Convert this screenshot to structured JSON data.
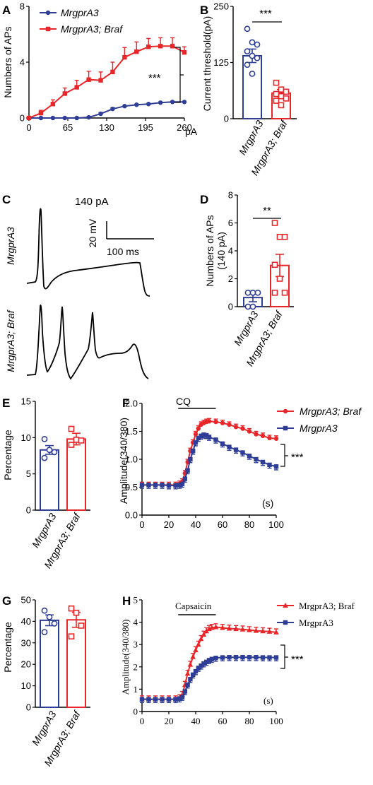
{
  "colors": {
    "blue": "#2e3d95",
    "red": "#e8262a"
  },
  "panels": {
    "A": "A",
    "B": "B",
    "C": "C",
    "D": "D",
    "E": "E",
    "F": "F",
    "G": "G",
    "H": "H"
  },
  "stars": {
    "three": "***",
    "two": "**"
  },
  "chart_data": [
    {
      "id": "A",
      "type": "line",
      "title": "",
      "xlabel": "",
      "x_unit": "pA",
      "ylabel": "Numbers of APs",
      "xlim": [
        0,
        260
      ],
      "ylim": [
        0,
        8
      ],
      "xticks": [
        "0",
        "65",
        "130",
        "195",
        "260"
      ],
      "yticks": [
        "0",
        "4",
        "8"
      ],
      "x": [
        0,
        20,
        40,
        60,
        80,
        100,
        120,
        140,
        160,
        180,
        200,
        220,
        240,
        260
      ],
      "series": [
        {
          "name": "MrgprA3",
          "color": "blue",
          "values": [
            0,
            0,
            0,
            0,
            0,
            0.05,
            0.3,
            0.65,
            0.85,
            0.95,
            1.0,
            1.1,
            1.15,
            1.15
          ],
          "err": [
            0,
            0,
            0,
            0,
            0,
            0.05,
            0.1,
            0.1,
            0.05,
            0.05,
            0.05,
            0.05,
            0.05,
            0.05
          ]
        },
        {
          "name": "MrgprA3; Braf",
          "color": "red",
          "values": [
            0,
            0.35,
            1.0,
            1.75,
            2.2,
            2.75,
            2.7,
            3.3,
            4.35,
            4.75,
            5.1,
            5.15,
            5.15,
            4.7
          ],
          "err": [
            0,
            0.2,
            0.3,
            0.4,
            0.5,
            0.6,
            0.6,
            0.7,
            0.7,
            0.7,
            0.6,
            0.6,
            0.6,
            0.4
          ]
        }
      ],
      "annotation": "***"
    },
    {
      "id": "B",
      "type": "bar",
      "ylabel": "Current threshold(pA)",
      "ylim": [
        0,
        250
      ],
      "yticks": [
        "0",
        "125",
        "250"
      ],
      "categories": [
        "MrgprA3",
        "MrgprA3; Braf"
      ],
      "values": [
        140,
        57
      ],
      "err": [
        15,
        8
      ],
      "points": [
        [
          200,
          170,
          165,
          150,
          140,
          135,
          120,
          100
        ],
        [
          80,
          65,
          60,
          55,
          50,
          45,
          40,
          30
        ]
      ],
      "annotation": "***"
    },
    {
      "id": "C",
      "type": "trace",
      "stimulus": "140 pA",
      "scale_v": "20 mV",
      "scale_t": "100 ms",
      "rows": [
        "MrgprA3",
        "MrgprA3; Braf"
      ]
    },
    {
      "id": "D",
      "type": "bar",
      "ylabel": "Numbers of APs",
      "ylabel2": "(140 pA)",
      "ylim": [
        0,
        8
      ],
      "yticks": [
        "0",
        "2",
        "4",
        "6",
        "8"
      ],
      "categories": [
        "MrgprA3",
        "MrgprA3; Braf"
      ],
      "values": [
        0.65,
        2.95
      ],
      "err": [
        0.3,
        0.8
      ],
      "points": [
        [
          1,
          1,
          1,
          0,
          0
        ],
        [
          6,
          5,
          5,
          3,
          2,
          1,
          1
        ]
      ],
      "annotation": "**"
    },
    {
      "id": "E",
      "type": "bar",
      "ylabel": "Percentage",
      "ylim": [
        0,
        15
      ],
      "yticks": [
        "0",
        "5",
        "10",
        "15"
      ],
      "categories": [
        "MrgprA3",
        "MrgprA3; Braf"
      ],
      "values": [
        8.3,
        9.8
      ],
      "err": [
        0.6,
        0.8
      ],
      "points": [
        [
          9.8,
          8.3,
          8.0,
          7.2
        ],
        [
          11.2,
          9.7,
          9.6,
          9.0
        ]
      ]
    },
    {
      "id": "F",
      "type": "line",
      "ylabel": "Amplitude(340/380)",
      "ylim": [
        0.0,
        2.0
      ],
      "yticks": [
        "0.0",
        "0.5",
        "1.0",
        "1.5",
        "2.0"
      ],
      "xlim": [
        0,
        100
      ],
      "xticks": [
        "0",
        "20",
        "40",
        "60",
        "80",
        "100"
      ],
      "x_unit": "(s)",
      "bar_label": "CQ",
      "bar_range": [
        27,
        55
      ],
      "x": [
        0,
        5,
        10,
        15,
        20,
        25,
        28,
        30,
        32,
        34,
        36,
        38,
        40,
        42,
        44,
        46,
        48,
        50,
        55,
        60,
        65,
        70,
        75,
        80,
        85,
        90,
        95,
        100
      ],
      "series": [
        {
          "name": "MrgprA3; Braf",
          "color": "red",
          "values": [
            0.54,
            0.54,
            0.54,
            0.54,
            0.54,
            0.54,
            0.56,
            0.6,
            0.75,
            0.95,
            1.15,
            1.3,
            1.45,
            1.55,
            1.62,
            1.65,
            1.67,
            1.68,
            1.67,
            1.65,
            1.62,
            1.58,
            1.55,
            1.5,
            1.45,
            1.42,
            1.38,
            1.37
          ],
          "err": 0.05
        },
        {
          "name": "MrgprA3",
          "color": "blue",
          "values": [
            0.54,
            0.54,
            0.54,
            0.54,
            0.53,
            0.53,
            0.54,
            0.56,
            0.65,
            0.8,
            1.0,
            1.15,
            1.3,
            1.38,
            1.42,
            1.44,
            1.43,
            1.4,
            1.35,
            1.28,
            1.22,
            1.17,
            1.12,
            1.06,
            1.0,
            0.95,
            0.9,
            0.87
          ],
          "err": 0.06
        }
      ],
      "annotation": "***"
    },
    {
      "id": "G",
      "type": "bar",
      "ylabel": "Percentage",
      "ylim": [
        0,
        50
      ],
      "yticks": [
        "0",
        "10",
        "20",
        "30",
        "40",
        "50"
      ],
      "categories": [
        "MrgprA3",
        "MrgprA3; Braf"
      ],
      "values": [
        40.5,
        40.7
      ],
      "err": [
        2.5,
        3.5
      ],
      "points": [
        [
          45,
          42,
          39,
          35
        ],
        [
          46,
          44,
          38,
          33
        ]
      ]
    },
    {
      "id": "H",
      "type": "line",
      "ylabel": "Amplitude(340/380)",
      "ylim": [
        0,
        5
      ],
      "yticks": [
        "0",
        "1",
        "2",
        "3",
        "4",
        "5"
      ],
      "xlim": [
        0,
        100
      ],
      "xticks": [
        "0",
        "20",
        "40",
        "60",
        "80",
        "100"
      ],
      "x_unit": "(s)",
      "bar_label": "Capsaicin",
      "bar_range": [
        27,
        55
      ],
      "x": [
        0,
        5,
        10,
        15,
        20,
        25,
        28,
        30,
        32,
        34,
        36,
        38,
        40,
        42,
        44,
        46,
        48,
        50,
        52,
        55,
        60,
        65,
        70,
        75,
        80,
        85,
        90,
        95,
        100
      ],
      "series": [
        {
          "name": "MrgprA3; Braf",
          "color": "red",
          "values": [
            0.55,
            0.55,
            0.55,
            0.55,
            0.55,
            0.55,
            0.6,
            0.75,
            1.2,
            1.7,
            2.1,
            2.45,
            2.75,
            3.0,
            3.25,
            3.45,
            3.6,
            3.7,
            3.75,
            3.78,
            3.75,
            3.72,
            3.7,
            3.68,
            3.65,
            3.62,
            3.6,
            3.58,
            3.55
          ],
          "err": 0.15
        },
        {
          "name": "MrgprA3",
          "color": "blue",
          "values": [
            0.55,
            0.55,
            0.55,
            0.55,
            0.55,
            0.55,
            0.58,
            0.65,
            0.9,
            1.2,
            1.45,
            1.65,
            1.8,
            1.95,
            2.05,
            2.15,
            2.22,
            2.3,
            2.35,
            2.4,
            2.42,
            2.43,
            2.43,
            2.43,
            2.43,
            2.43,
            2.42,
            2.42,
            2.42
          ],
          "err": 0.15
        }
      ],
      "annotation": "***"
    }
  ]
}
